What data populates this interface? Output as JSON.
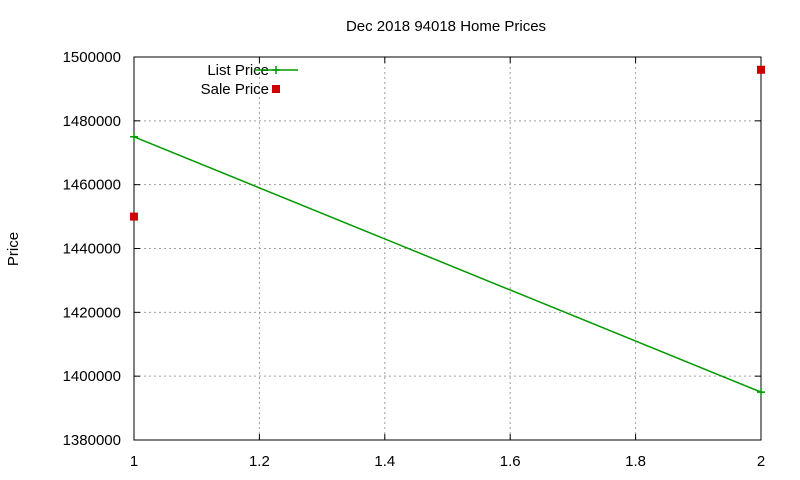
{
  "chart_data": {
    "type": "line",
    "title": "Dec 2018 94018 Home Prices",
    "xlabel": "",
    "ylabel": "Price",
    "xlim": [
      1,
      2
    ],
    "ylim": [
      1380000,
      1500000
    ],
    "x_ticks": [
      "1",
      "1.2",
      "1.4",
      "1.6",
      "1.8",
      "2"
    ],
    "y_ticks": [
      "1380000",
      "1400000",
      "1420000",
      "1440000",
      "1460000",
      "1480000",
      "1500000"
    ],
    "grid": true,
    "legend_position": "top-left",
    "series": [
      {
        "name": "List Price",
        "style": "linespoints",
        "marker": "plus",
        "color": "#009900",
        "points": [
          [
            1,
            1475000
          ],
          [
            2,
            1395000
          ]
        ]
      },
      {
        "name": "Sale Price",
        "style": "points",
        "marker": "square",
        "color": "#cc0000",
        "points": [
          [
            1,
            1450000
          ],
          [
            2,
            1496000
          ]
        ]
      }
    ]
  }
}
